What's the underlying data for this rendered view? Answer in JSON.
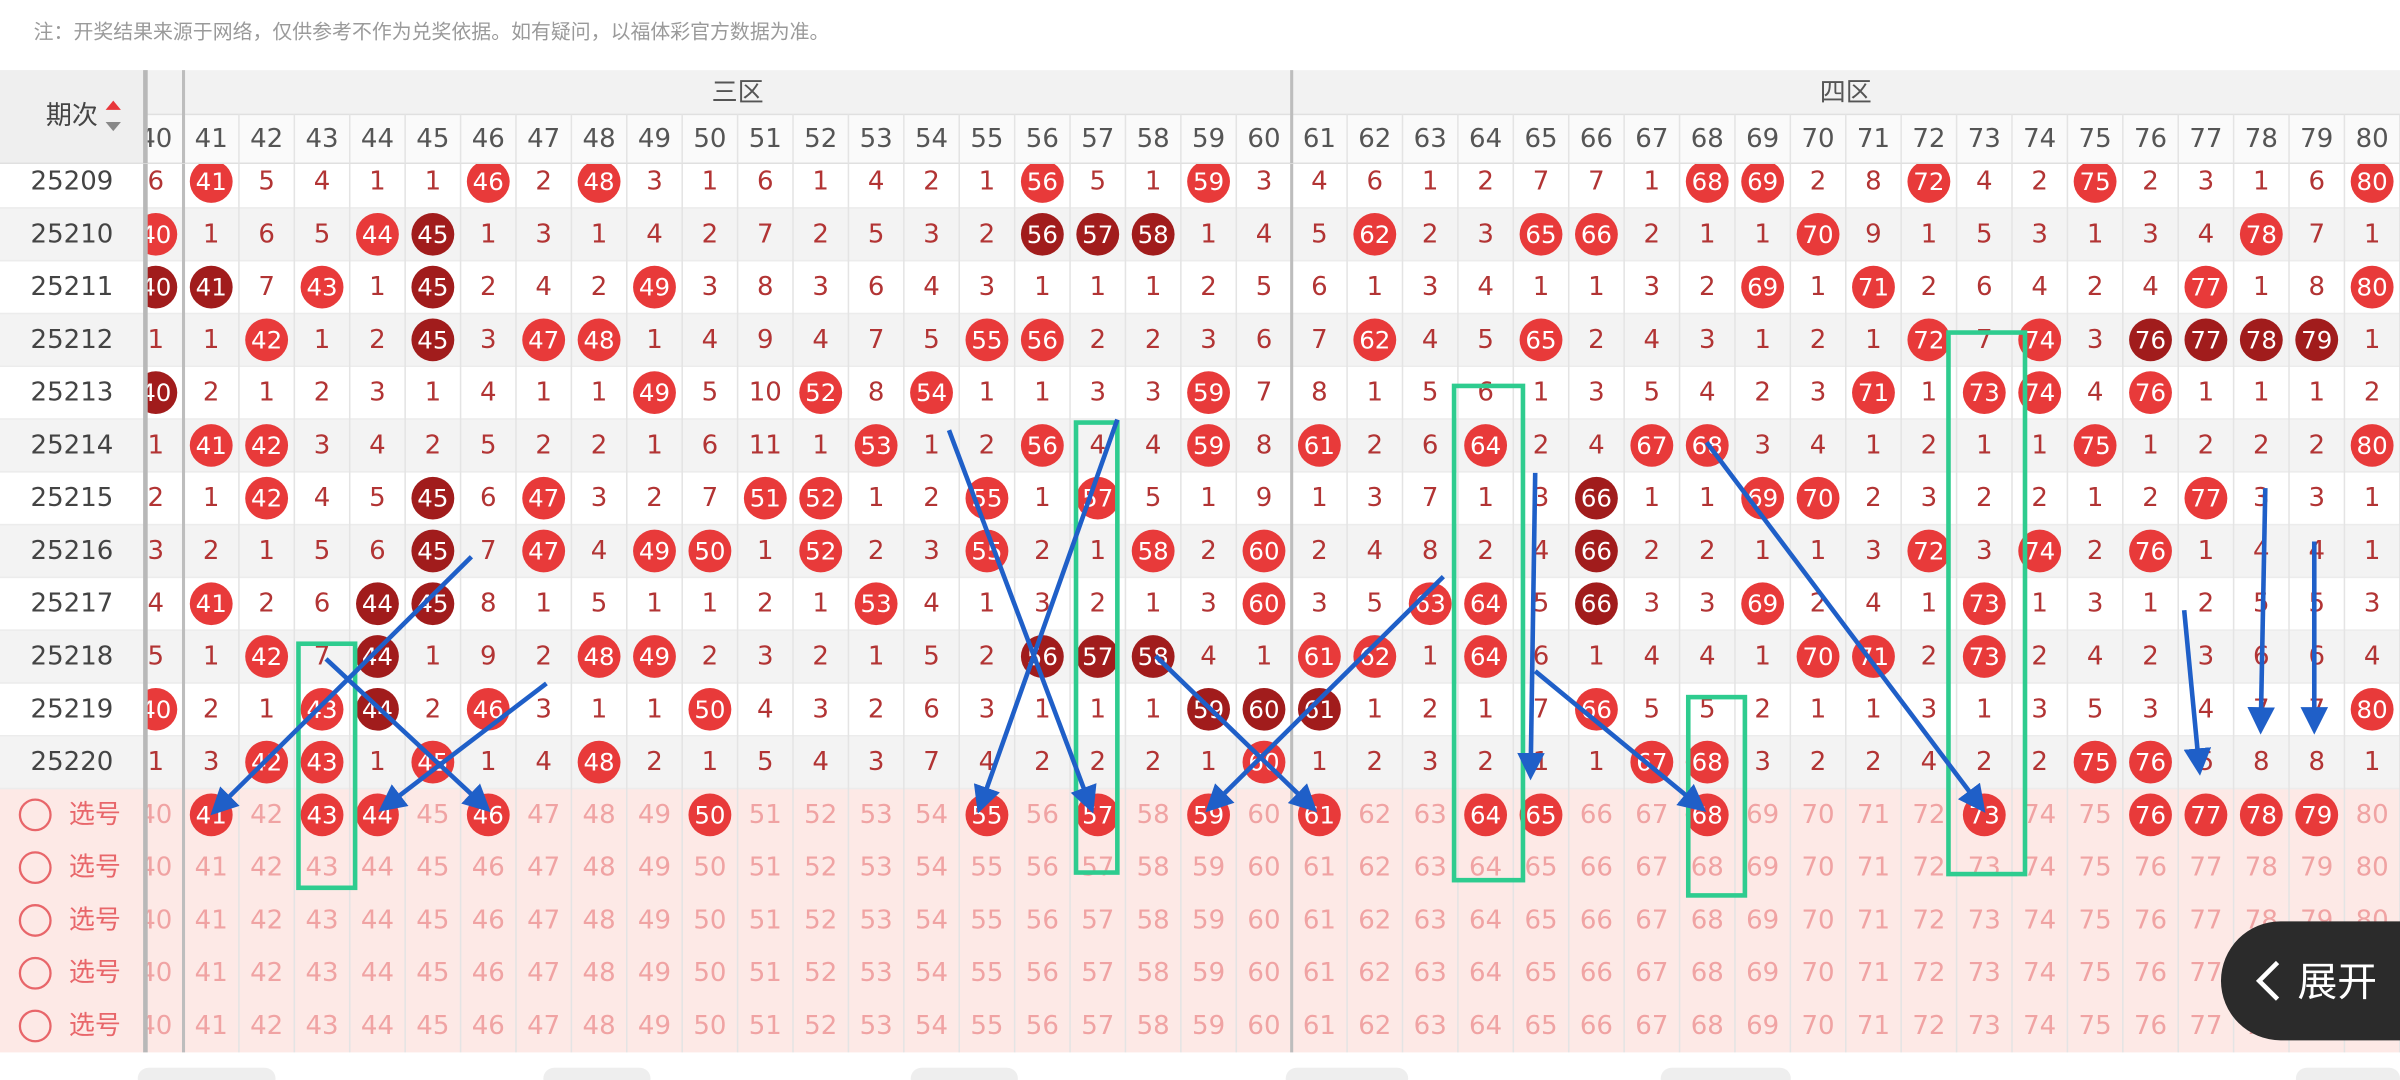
{
  "notice": "注：开奖结果来源于网络，仅供参考不作为兑奖依据。如有疑问，以福体彩官方数据为准。",
  "header": {
    "issue_label": "期次",
    "zones": [
      {
        "label": "三区"
      },
      {
        "label": "四区"
      }
    ],
    "columns": [
      40,
      41,
      42,
      43,
      44,
      45,
      46,
      47,
      48,
      49,
      50,
      51,
      52,
      53,
      54,
      55,
      56,
      57,
      58,
      59,
      60,
      61,
      62,
      63,
      64,
      65,
      66,
      67,
      68,
      69,
      70,
      71,
      72,
      73,
      74,
      75,
      76,
      77,
      78,
      79,
      80
    ]
  },
  "rows": [
    {
      "issue": "25209",
      "cells": [
        6,
        41,
        5,
        4,
        1,
        1,
        46,
        2,
        48,
        3,
        1,
        6,
        1,
        4,
        2,
        1,
        56,
        5,
        1,
        59,
        3,
        4,
        6,
        1,
        2,
        7,
        7,
        1,
        68,
        69,
        2,
        8,
        72,
        4,
        2,
        75,
        2,
        3,
        1,
        6,
        80
      ],
      "dark": []
    },
    {
      "issue": "25210",
      "cells": [
        40,
        1,
        6,
        5,
        44,
        45,
        1,
        3,
        1,
        4,
        2,
        7,
        2,
        5,
        3,
        2,
        56,
        57,
        58,
        1,
        4,
        5,
        62,
        2,
        3,
        65,
        66,
        2,
        1,
        1,
        70,
        9,
        1,
        5,
        3,
        1,
        3,
        4,
        78,
        7,
        1
      ],
      "dark": [
        45,
        56,
        57,
        58
      ]
    },
    {
      "issue": "25211",
      "cells": [
        40,
        41,
        7,
        43,
        1,
        45,
        2,
        4,
        2,
        49,
        3,
        8,
        3,
        6,
        4,
        3,
        1,
        1,
        1,
        2,
        5,
        6,
        1,
        3,
        4,
        1,
        1,
        3,
        2,
        69,
        1,
        71,
        2,
        6,
        4,
        2,
        4,
        77,
        1,
        8,
        80
      ],
      "dark": [
        40,
        41,
        45
      ]
    },
    {
      "issue": "25212",
      "cells": [
        1,
        1,
        42,
        1,
        2,
        45,
        3,
        47,
        48,
        1,
        4,
        9,
        4,
        7,
        5,
        55,
        56,
        2,
        2,
        3,
        6,
        7,
        62,
        4,
        5,
        65,
        2,
        4,
        3,
        1,
        2,
        1,
        72,
        7,
        74,
        3,
        76,
        77,
        78,
        79,
        1
      ],
      "dark": [
        45,
        76,
        77,
        78,
        79
      ]
    },
    {
      "issue": "25213",
      "cells": [
        40,
        2,
        1,
        2,
        3,
        1,
        4,
        1,
        1,
        49,
        5,
        10,
        52,
        8,
        54,
        1,
        1,
        3,
        3,
        59,
        7,
        8,
        1,
        5,
        6,
        1,
        3,
        5,
        4,
        2,
        3,
        71,
        1,
        73,
        74,
        4,
        76,
        1,
        1,
        1,
        2
      ],
      "dark": [
        40
      ]
    },
    {
      "issue": "25214",
      "cells": [
        1,
        41,
        42,
        3,
        4,
        2,
        5,
        2,
        2,
        1,
        6,
        11,
        1,
        53,
        1,
        2,
        56,
        4,
        4,
        59,
        8,
        61,
        2,
        6,
        64,
        2,
        4,
        67,
        68,
        3,
        4,
        1,
        2,
        1,
        1,
        75,
        1,
        2,
        2,
        2,
        80
      ],
      "dark": []
    },
    {
      "issue": "25215",
      "cells": [
        2,
        1,
        42,
        4,
        5,
        45,
        6,
        47,
        3,
        2,
        7,
        51,
        52,
        1,
        2,
        55,
        1,
        57,
        5,
        1,
        9,
        1,
        3,
        7,
        1,
        3,
        66,
        1,
        1,
        69,
        70,
        2,
        3,
        2,
        2,
        1,
        2,
        77,
        3,
        3,
        1
      ],
      "dark": [
        45,
        66
      ]
    },
    {
      "issue": "25216",
      "cells": [
        3,
        2,
        1,
        5,
        6,
        45,
        7,
        47,
        4,
        49,
        50,
        1,
        52,
        2,
        3,
        55,
        2,
        1,
        58,
        2,
        60,
        2,
        4,
        8,
        2,
        4,
        66,
        2,
        2,
        1,
        1,
        3,
        72,
        3,
        74,
        2,
        76,
        1,
        4,
        4,
        1
      ],
      "dark": [
        45,
        66
      ]
    },
    {
      "issue": "25217",
      "cells": [
        4,
        41,
        2,
        6,
        44,
        45,
        8,
        1,
        5,
        1,
        1,
        2,
        1,
        53,
        4,
        1,
        3,
        2,
        1,
        3,
        60,
        3,
        5,
        63,
        64,
        5,
        66,
        3,
        3,
        69,
        2,
        4,
        1,
        73,
        1,
        3,
        1,
        2,
        5,
        5,
        3
      ],
      "dark": [
        44,
        45,
        66
      ]
    },
    {
      "issue": "25218",
      "cells": [
        5,
        1,
        42,
        7,
        44,
        1,
        9,
        2,
        48,
        49,
        2,
        3,
        2,
        1,
        5,
        2,
        56,
        57,
        58,
        4,
        1,
        61,
        62,
        1,
        64,
        6,
        1,
        4,
        4,
        1,
        70,
        71,
        2,
        73,
        2,
        4,
        2,
        3,
        6,
        6,
        4
      ],
      "dark": [
        44,
        56,
        57,
        58
      ]
    },
    {
      "issue": "25219",
      "cells": [
        40,
        2,
        1,
        43,
        44,
        2,
        46,
        3,
        1,
        1,
        50,
        4,
        3,
        2,
        6,
        3,
        1,
        1,
        1,
        59,
        60,
        61,
        1,
        2,
        1,
        7,
        66,
        5,
        5,
        2,
        1,
        1,
        3,
        1,
        3,
        5,
        3,
        4,
        7,
        7,
        80
      ],
      "dark": [
        44,
        59,
        60,
        61
      ]
    },
    {
      "issue": "25220",
      "cells": [
        1,
        3,
        42,
        43,
        1,
        45,
        1,
        4,
        48,
        2,
        1,
        5,
        4,
        3,
        7,
        4,
        2,
        2,
        2,
        1,
        60,
        1,
        2,
        3,
        2,
        1,
        1,
        67,
        68,
        3,
        2,
        2,
        4,
        2,
        2,
        75,
        76,
        5,
        8,
        8,
        1
      ],
      "dark": []
    }
  ],
  "pick_rows": [
    {
      "label": "选号",
      "selected": [
        41,
        43,
        44,
        46,
        50,
        55,
        57,
        59,
        61,
        64,
        65,
        68,
        73,
        76,
        77,
        78,
        79
      ]
    },
    {
      "label": "选号",
      "selected": []
    },
    {
      "label": "选号",
      "selected": []
    },
    {
      "label": "选号",
      "selected": []
    },
    {
      "label": "选号",
      "selected": []
    }
  ],
  "expand_button": "展开"
}
